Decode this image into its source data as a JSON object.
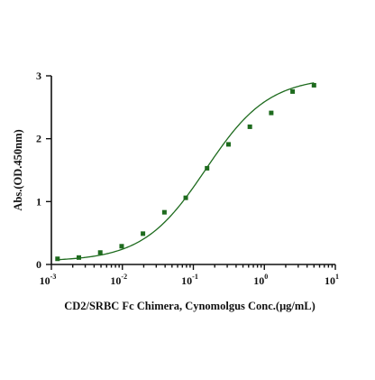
{
  "chart_data": {
    "type": "scatter",
    "title": "",
    "xlabel": "CD2/SRBC Fc Chimera, Cynomolgus  Conc.(μg/mL)",
    "ylabel": "Abs.(OD.450nm)",
    "x_scale": "log",
    "xlim": [
      0.001,
      10
    ],
    "ylim": [
      0,
      3
    ],
    "x_ticks": [
      {
        "base": "10",
        "exp": "-3",
        "value": 0.001
      },
      {
        "base": "10",
        "exp": "-2",
        "value": 0.01
      },
      {
        "base": "10",
        "exp": "-1",
        "value": 0.1
      },
      {
        "base": "10",
        "exp": "0",
        "value": 1
      },
      {
        "base": "10",
        "exp": "1",
        "value": 10
      }
    ],
    "y_ticks": [
      "0",
      "1",
      "2",
      "3"
    ],
    "grid": false,
    "legend": "none",
    "series": [
      {
        "marker": "square",
        "color": "#1e6b1e",
        "points": [
          {
            "x": 0.00122,
            "y": 0.09
          },
          {
            "x": 0.00244,
            "y": 0.11
          },
          {
            "x": 0.00488,
            "y": 0.19
          },
          {
            "x": 0.00977,
            "y": 0.29
          },
          {
            "x": 0.0195,
            "y": 0.49
          },
          {
            "x": 0.0391,
            "y": 0.83
          },
          {
            "x": 0.0781,
            "y": 1.06
          },
          {
            "x": 0.156,
            "y": 1.53
          },
          {
            "x": 0.3125,
            "y": 1.91
          },
          {
            "x": 0.625,
            "y": 2.19
          },
          {
            "x": 1.25,
            "y": 2.41
          },
          {
            "x": 2.5,
            "y": 2.75
          },
          {
            "x": 5.0,
            "y": 2.85
          }
        ]
      }
    ],
    "fit_curve": {
      "type": "4PL",
      "color": "#1e6b1e",
      "bottom": 0.05,
      "top": 2.98,
      "ec50": 0.15,
      "hill": 0.98
    }
  }
}
